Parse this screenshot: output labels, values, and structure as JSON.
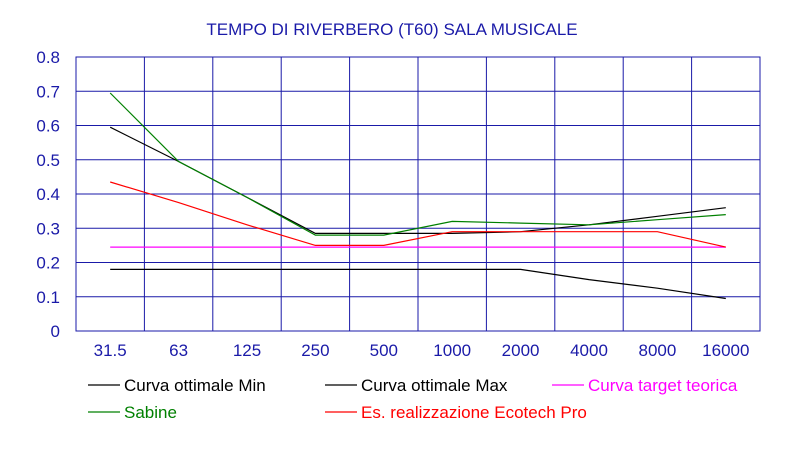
{
  "chart_data": {
    "type": "line",
    "title": "TEMPO DI RIVERBERO (T60) SALA MUSICALE",
    "categories": [
      "31.5",
      "63",
      "125",
      "250",
      "500",
      "1000",
      "2000",
      "4000",
      "8000",
      "16000"
    ],
    "y_ticks": [
      "0",
      "0.1",
      "0.2",
      "0.3",
      "0.4",
      "0.5",
      "0.6",
      "0.7",
      "0.8"
    ],
    "ylim": [
      0,
      0.8
    ],
    "grid": true,
    "legend_position": "bottom",
    "series": [
      {
        "name": "Curva ottimale Min",
        "color": "#000000",
        "values": [
          0.18,
          0.18,
          0.18,
          0.18,
          0.18,
          0.18,
          0.18,
          0.15,
          0.125,
          0.095
        ]
      },
      {
        "name": "Curva ottimale Max",
        "color": "#000000",
        "values": [
          0.595,
          0.495,
          0.39,
          0.285,
          0.285,
          0.285,
          0.29,
          0.31,
          0.335,
          0.36
        ]
      },
      {
        "name": "Curva target teorica",
        "color": "#ff00ff",
        "values": [
          0.245,
          0.245,
          0.245,
          0.245,
          0.245,
          0.245,
          0.245,
          0.245,
          0.245,
          0.245
        ]
      },
      {
        "name": "Sabine",
        "color": "#008000",
        "values": [
          0.695,
          0.495,
          0.39,
          0.28,
          0.28,
          0.32,
          0.315,
          0.31,
          0.325,
          0.34
        ]
      },
      {
        "name": "Es. realizzazione Ecotech Pro",
        "color": "#ff0000",
        "values": [
          0.435,
          0.375,
          0.31,
          0.25,
          0.25,
          0.29,
          0.29,
          0.29,
          0.29,
          0.245
        ]
      }
    ]
  },
  "colors": {
    "text": "#1a1aa8",
    "grid": "#1a1aa8"
  }
}
